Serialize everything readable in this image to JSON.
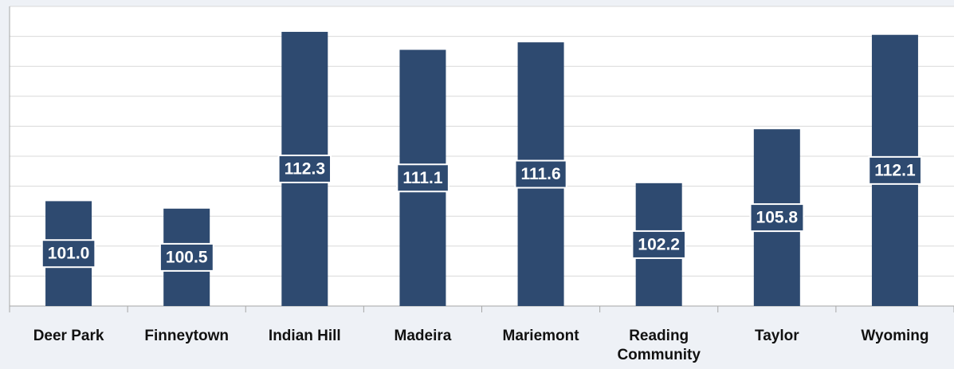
{
  "chart_data": {
    "type": "bar",
    "categories": [
      "Deer Park",
      "Finneytown",
      "Indian Hill",
      "Madeira",
      "Mariemont",
      "Reading Community",
      "Taylor",
      "Wyoming"
    ],
    "values": [
      101.0,
      100.5,
      112.3,
      111.1,
      111.6,
      102.2,
      105.8,
      112.1
    ],
    "value_labels": [
      "101.0",
      "100.5",
      "112.3",
      "111.1",
      "111.6",
      "102.2",
      "105.8",
      "112.1"
    ],
    "color": "#2e4a70",
    "ylim": [
      94,
      114
    ],
    "yticks": [
      94,
      96,
      98,
      100,
      102,
      104,
      106,
      108,
      110,
      112,
      114
    ],
    "grid": true
  }
}
